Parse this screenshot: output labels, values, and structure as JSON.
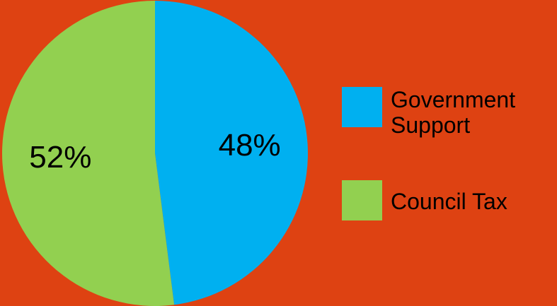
{
  "background_color": "#DE4212",
  "chart_data": {
    "type": "pie",
    "title": "",
    "legend_position": "right",
    "slices": [
      {
        "name": "Government Support",
        "value": 48,
        "label": "48%",
        "color": "#00B0F0"
      },
      {
        "name": "Council Tax",
        "value": 52,
        "label": "52%",
        "color": "#92D050"
      }
    ]
  }
}
